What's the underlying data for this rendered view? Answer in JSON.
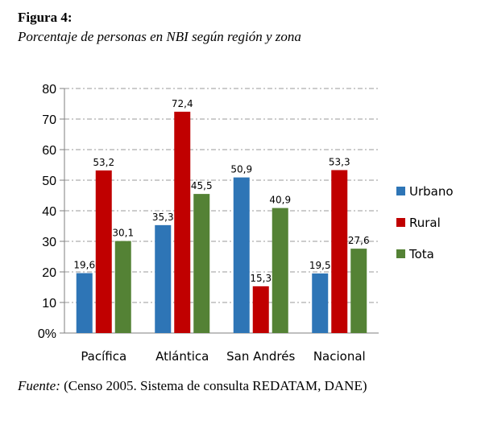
{
  "figure": {
    "label": "Figura 4:",
    "title": "Porcentaje de personas en NBI según región y zona"
  },
  "source": {
    "label": "Fuente:",
    "text": "(Censo 2005. Sistema de consulta REDATAM, DANE)"
  },
  "chart_data": {
    "type": "bar",
    "title": "Porcentaje de personas en NBI según región y zona",
    "xlabel": "",
    "ylabel": "",
    "ylim": [
      0,
      80
    ],
    "yticks": [
      0,
      10,
      20,
      30,
      40,
      50,
      60,
      70,
      80
    ],
    "ytick_labels": [
      "0%",
      "10",
      "20",
      "30",
      "40",
      "50",
      "60",
      "70",
      "80"
    ],
    "grid": true,
    "legend_position": "right",
    "categories": [
      "Pacífica",
      "Atlántica",
      "San Andrés",
      "Nacional"
    ],
    "series": [
      {
        "name": "Urbano",
        "color": "#2e75b6",
        "values": [
          19.6,
          35.3,
          50.9,
          19.5
        ],
        "labels": [
          "19,6",
          "35,3",
          "50,9",
          "19,5"
        ]
      },
      {
        "name": "Rural",
        "color": "#c00000",
        "values": [
          53.2,
          72.4,
          15.3,
          53.3
        ],
        "labels": [
          "53,2",
          "72,4",
          "15,3",
          "53,3"
        ]
      },
      {
        "name": "Tota",
        "color": "#548235",
        "values": [
          30.1,
          45.5,
          40.9,
          27.6
        ],
        "labels": [
          "30,1",
          "45,5",
          "40,9",
          "27,6"
        ]
      }
    ]
  }
}
